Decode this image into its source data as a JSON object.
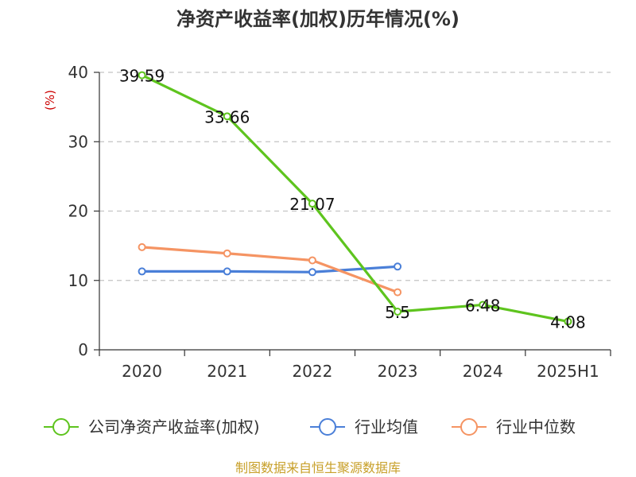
{
  "chart_data": {
    "type": "line",
    "title": "净资产收益率(加权)历年情况(%)",
    "ylabel": "(%)",
    "xlabel": "",
    "categories": [
      "2020",
      "2021",
      "2022",
      "2023",
      "2024",
      "2025H1"
    ],
    "ylim": [
      0,
      40
    ],
    "yticks": [
      0,
      10,
      20,
      30,
      40
    ],
    "grid": true,
    "legend_position": "bottom",
    "series": [
      {
        "name": "公司净资产收益率(加权)",
        "values": [
          39.59,
          33.66,
          21.07,
          5.5,
          6.48,
          4.08
        ],
        "color": "#5ec41e",
        "data_labels": [
          "39.59",
          "33.66",
          "21.07",
          "5.5",
          "6.48",
          "4.08"
        ]
      },
      {
        "name": "行业均值",
        "values": [
          11.3,
          11.3,
          11.2,
          12.0,
          null,
          null
        ],
        "color": "#4a7fd8"
      },
      {
        "name": "行业中位数",
        "values": [
          14.8,
          13.9,
          12.9,
          8.3,
          null,
          null
        ],
        "color": "#f59463"
      }
    ],
    "source": "制图数据来自恒生聚源数据库"
  }
}
